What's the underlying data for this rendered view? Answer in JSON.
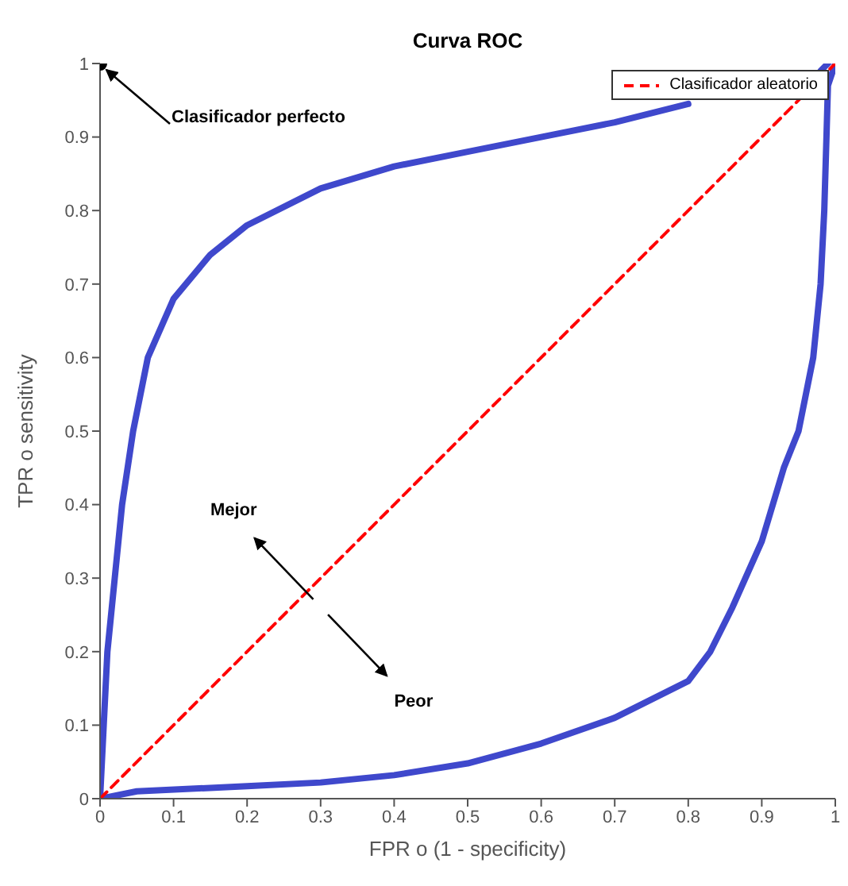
{
  "chart_data": {
    "type": "line",
    "title": "Curva ROC",
    "xlabel": "FPR o  (1 - specificity)",
    "ylabel": "TPR o  sensitivity",
    "xlim": [
      0,
      1
    ],
    "ylim": [
      0,
      1
    ],
    "xticks": [
      0,
      0.1,
      0.2,
      0.3,
      0.4,
      0.5,
      0.6,
      0.7,
      0.8,
      0.9,
      1
    ],
    "yticks": [
      0,
      0.1,
      0.2,
      0.3,
      0.4,
      0.5,
      0.6,
      0.7,
      0.8,
      0.9,
      1
    ],
    "grid": false,
    "legend": "top right",
    "series": [
      {
        "color": "#3f48cc",
        "line_style": "solid",
        "marker": "none",
        "x": [
          0,
          0.005,
          0.01,
          0.02,
          0.03,
          0.045,
          0.065,
          0.1,
          0.15,
          0.2,
          0.3,
          0.4,
          0.5,
          0.6,
          0.7,
          0.8,
          0.9,
          0.98,
          0.99
        ],
        "values": [
          0,
          0.1,
          0.2,
          0.3,
          0.4,
          0.5,
          0.6,
          0.68,
          0.74,
          0.78,
          0.83,
          0.86,
          0.88,
          0.9,
          0.92,
          0.945,
          null,
          0.99,
          1
        ]
      },
      {
        "color": "#3f48cc",
        "line_style": "solid",
        "marker": "none",
        "x": [
          0,
          0.05,
          0.2,
          0.3,
          0.4,
          0.5,
          0.6,
          0.7,
          0.8,
          0.83,
          0.86,
          0.9,
          0.93,
          0.95,
          0.97,
          0.98,
          0.985,
          0.988,
          0.99,
          1
        ],
        "values": [
          0,
          0.01,
          0.017,
          0.022,
          0.032,
          0.048,
          0.075,
          0.11,
          0.16,
          0.2,
          0.26,
          0.35,
          0.45,
          0.5,
          0.6,
          0.7,
          0.8,
          0.9,
          0.97,
          1
        ]
      },
      {
        "name": "Clasificador aleatorio",
        "color": "#ff0000",
        "line_style": "dashed",
        "marker": "none",
        "x": [
          0,
          1
        ],
        "values": [
          0,
          1
        ]
      },
      {
        "type": "scatter",
        "color": "#000000",
        "marker": "circle",
        "x": [
          0
        ],
        "values": [
          1
        ]
      }
    ],
    "annotations": [
      {
        "text": "Clasificador perfecto",
        "x": 0,
        "y": 1
      },
      "Mejor",
      "Peor"
    ]
  }
}
